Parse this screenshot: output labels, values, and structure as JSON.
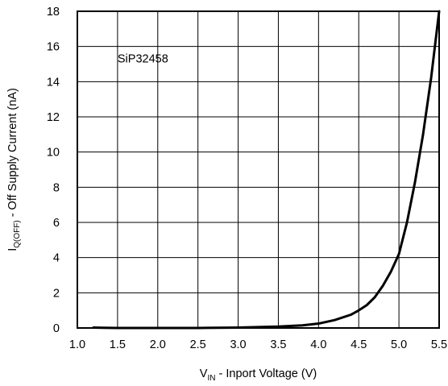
{
  "chart_data": {
    "type": "line",
    "title": "",
    "xlabel": {
      "main": "V",
      "sub": "IN",
      "rest": " - Inport Voltage (V)"
    },
    "ylabel": {
      "main": "I",
      "sub": "Q(OFF)",
      "rest": " - Off Supply Current (nA)"
    },
    "xlim": [
      1.0,
      5.5
    ],
    "ylim": [
      0,
      18
    ],
    "x_ticks": [
      "1.0",
      "1.5",
      "2.0",
      "2.5",
      "3.0",
      "3.5",
      "4.0",
      "4.5",
      "5.0",
      "5.5"
    ],
    "y_ticks": [
      "0",
      "2",
      "4",
      "6",
      "8",
      "10",
      "12",
      "14",
      "16",
      "18"
    ],
    "grid": true,
    "annotations": [
      {
        "text": "SiP32458",
        "x": 1.5,
        "y": 15.1
      }
    ],
    "series": [
      {
        "color": "#000000",
        "points": [
          [
            1.2,
            0.02
          ],
          [
            1.5,
            0.0
          ],
          [
            2.0,
            0.0
          ],
          [
            2.5,
            0.0
          ],
          [
            3.0,
            0.02
          ],
          [
            3.5,
            0.08
          ],
          [
            3.8,
            0.15
          ],
          [
            4.0,
            0.25
          ],
          [
            4.2,
            0.45
          ],
          [
            4.4,
            0.75
          ],
          [
            4.5,
            1.0
          ],
          [
            4.6,
            1.3
          ],
          [
            4.7,
            1.75
          ],
          [
            4.8,
            2.4
          ],
          [
            4.9,
            3.2
          ],
          [
            5.0,
            4.2
          ],
          [
            5.1,
            6.0
          ],
          [
            5.2,
            8.3
          ],
          [
            5.3,
            11.0
          ],
          [
            5.4,
            14.2
          ],
          [
            5.5,
            18.0
          ]
        ]
      }
    ]
  }
}
